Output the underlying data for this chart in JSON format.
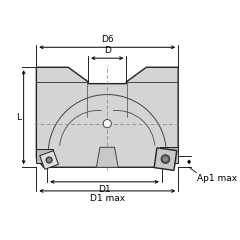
{
  "bg_color": "#ffffff",
  "line_color": "#000000",
  "body_fill": "#d4d4d4",
  "body_stroke": "#444444",
  "body_stroke_thick": "#222222",
  "dashed_color": "#888888",
  "insert_fill": "#e0e0e0",
  "insert_fill2": "#c8c8c8",
  "insert_stroke": "#222222",
  "shadow_fill": "#b0b0b0",
  "fig_width": 2.4,
  "fig_height": 2.4,
  "dpi": 100,
  "labels": {
    "D6": "D6",
    "D": "D",
    "L": "L",
    "D1": "D1",
    "D1max": "D1 max",
    "Ap1max": "Ap1 max"
  }
}
